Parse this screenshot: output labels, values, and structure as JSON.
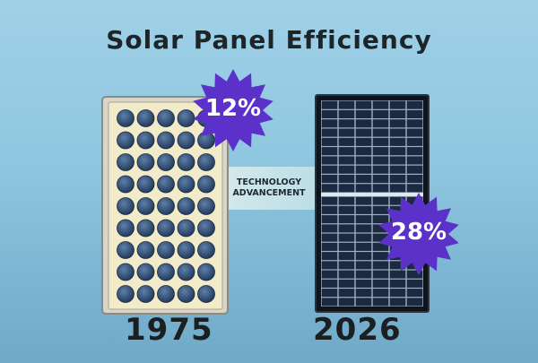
{
  "title": "Solar Panel Efficiency",
  "old_panel": {
    "year": "1975",
    "efficiency": "12%"
  },
  "new_panel": {
    "year": "2026",
    "efficiency": "28%"
  },
  "banner": {
    "line1": "TECHNOLOGY",
    "line2": "ADVANCEMENT"
  },
  "colors": {
    "background": "#9fd1e8",
    "burst": "#5b31c9",
    "old_cell": "#2f4f7a",
    "old_panel": "#f1ebc9",
    "new_panel": "#1b2a40"
  }
}
